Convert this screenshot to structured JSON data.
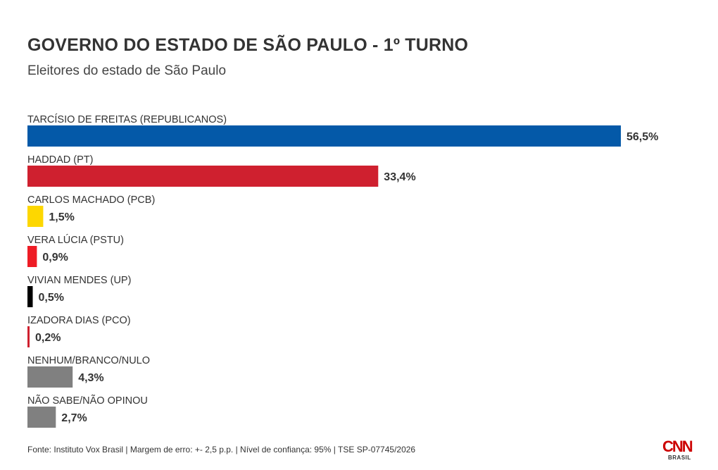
{
  "header": {
    "title": "GOVERNO DO ESTADO DE SÃO PAULO - 1º TURNO",
    "subtitle": "Eleitores do estado de São Paulo"
  },
  "chart_data": {
    "type": "bar",
    "orientation": "horizontal",
    "title": "GOVERNO DO ESTADO DE SÃO PAULO - 1º TURNO",
    "subtitle": "Eleitores do estado de São Paulo",
    "categories": [
      "TARCÍSIO DE FREITAS (REPUBLICANOS)",
      "HADDAD (PT)",
      "CARLOS MACHADO (PCB)",
      "VERA LÚCIA (PSTU)",
      "VIVIAN MENDES (UP)",
      "IZADORA DIAS (PCO)",
      "NENHUM/BRANCO/NULO",
      "NÃO SABE/NÃO OPINOU"
    ],
    "values": [
      56.5,
      33.4,
      1.5,
      0.9,
      0.5,
      0.2,
      4.3,
      2.7
    ],
    "value_labels": [
      "56,5%",
      "33,4%",
      "1,5%",
      "0,9%",
      "0,5%",
      "0,2%",
      "4,3%",
      "2,7%"
    ],
    "colors": [
      "#0459a8",
      "#cf202f",
      "#fdd700",
      "#ee1c25",
      "#000000",
      "#cf202f",
      "#808080",
      "#808080"
    ],
    "xlim": [
      0,
      56.5
    ],
    "grid": false,
    "legend": "none"
  },
  "footer": {
    "source": "Fonte: Instituto Vox Brasil | Margem de erro: +- 2,5 p.p. | Nível de confiança: 95% | TSE SP-07745/2026"
  },
  "logo": {
    "mark": "CNN",
    "sub": "BRASIL"
  }
}
